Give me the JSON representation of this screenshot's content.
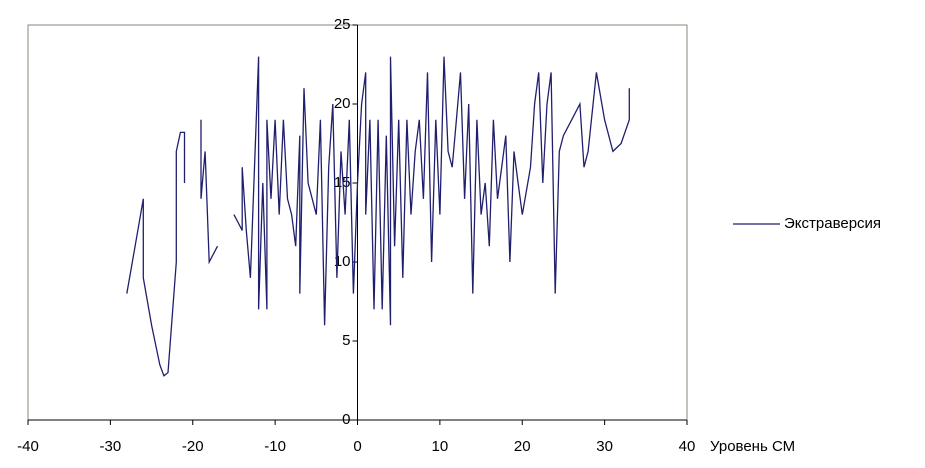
{
  "chart_data": {
    "type": "line",
    "x_label": "Уровень СМ",
    "xlim": [
      -40,
      40
    ],
    "xticks": [
      -40,
      -30,
      -20,
      -10,
      0,
      10,
      20,
      30,
      40
    ],
    "ylim": [
      0,
      25
    ],
    "yticks": [
      0,
      5,
      10,
      15,
      20,
      25
    ],
    "legend": "right",
    "x": [
      -28,
      -27,
      -26,
      -26,
      -25,
      -24,
      -23.5,
      -23,
      -22,
      -22,
      -21.5,
      -21,
      -21,
      -20,
      -19,
      -19,
      -18.5,
      -18,
      -17,
      -16,
      -15,
      -14.5,
      -14,
      -14,
      -13.5,
      -13,
      -12.5,
      -12,
      -12,
      -11.5,
      -11,
      -11,
      -10.5,
      -10,
      -9.5,
      -9,
      -8.5,
      -8,
      -7.5,
      -7,
      -7,
      -6.5,
      -6,
      -5.5,
      -5,
      -4.5,
      -4,
      -3.5,
      -3,
      -2.5,
      -2,
      -1.5,
      -1,
      -0.5,
      0,
      0.5,
      1,
      1,
      1.5,
      2,
      2.5,
      3,
      3.5,
      4,
      4,
      4.5,
      5,
      5.5,
      6,
      6.5,
      7,
      7.5,
      8,
      8.5,
      9,
      9.5,
      10,
      10.5,
      11,
      11.5,
      12,
      12.5,
      13,
      13.5,
      14,
      14.5,
      15,
      15.5,
      16,
      16.5,
      17,
      17.5,
      18,
      18.5,
      19,
      19.5,
      20,
      21,
      21.5,
      22,
      22.5,
      23,
      23.5,
      24,
      24.5,
      25,
      26,
      27,
      27.5,
      28,
      29,
      30,
      31,
      32,
      33,
      33,
      33
    ],
    "series": [
      {
        "name": "Экстраверсия",
        "color": "#1f1f6e",
        "values": [
          8,
          11,
          14,
          9,
          6,
          3.5,
          2.8,
          3,
          10,
          17,
          18.2,
          18.2,
          15,
          null,
          19,
          14,
          17,
          10,
          11,
          null,
          13,
          12.5,
          12,
          16,
          12,
          9,
          16,
          23,
          7,
          15,
          7,
          19,
          14,
          19,
          13,
          19,
          14,
          13,
          11,
          18,
          8,
          21,
          15,
          14,
          13,
          19,
          6,
          16,
          20,
          9,
          17,
          13,
          19,
          8,
          15,
          20,
          22,
          13,
          19,
          7,
          19,
          7,
          18,
          6,
          23,
          11,
          19,
          9,
          19,
          13,
          17,
          19,
          14,
          22,
          10,
          19,
          13,
          23,
          17,
          16,
          19,
          22,
          14,
          20,
          8,
          19,
          13,
          15,
          11,
          19,
          14,
          16,
          18,
          10,
          17,
          15,
          13,
          16,
          20,
          22,
          15,
          20,
          22,
          8,
          17,
          18,
          19,
          20,
          16,
          17,
          22,
          19,
          17,
          17.5,
          19,
          21,
          20
        ]
      }
    ]
  }
}
